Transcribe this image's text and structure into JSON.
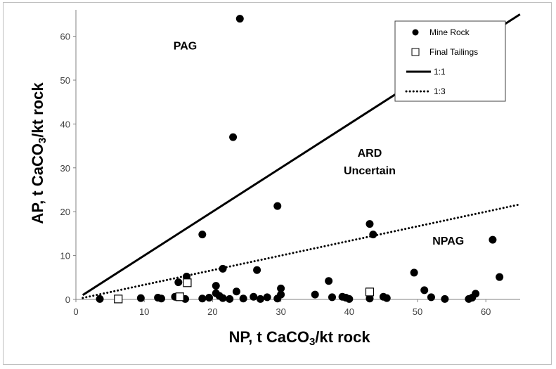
{
  "chart_data": {
    "type": "scatter",
    "xlabel": "NP, t CaCO3/kt rock",
    "ylabel": "AP, t CaCO3/kt rock",
    "xlim": [
      0,
      65
    ],
    "ylim": [
      0,
      65
    ],
    "x_ticks": [
      "0",
      "10",
      "20",
      "30",
      "40",
      "50",
      "60"
    ],
    "y_ticks": [
      "0",
      "10",
      "20",
      "30",
      "40",
      "50",
      "60"
    ],
    "grid": false,
    "legend_position": "top-right",
    "regions": [
      {
        "label": "PAG",
        "x": 16,
        "y": 57
      },
      {
        "label": "ARD",
        "x": 43,
        "y": 32.5
      },
      {
        "label": "Uncertain",
        "x": 43,
        "y": 28.5
      },
      {
        "label": "NPAG",
        "x": 54.5,
        "y": 12.5
      }
    ],
    "series": [
      {
        "name": "Mine Rock",
        "marker": "circle",
        "color": "#000000",
        "points": [
          [
            24,
            64
          ],
          [
            23,
            37
          ],
          [
            29.5,
            21.3
          ],
          [
            18.5,
            14.8
          ],
          [
            43,
            17.2
          ],
          [
            43.5,
            14.8
          ],
          [
            61,
            13.6
          ],
          [
            26.5,
            6.7
          ],
          [
            21.5,
            7
          ],
          [
            49.5,
            6.1
          ],
          [
            37,
            4.2
          ],
          [
            15,
            3.9
          ],
          [
            16.2,
            5.2
          ],
          [
            20.5,
            3.1
          ],
          [
            30,
            2.5
          ],
          [
            51,
            2.1
          ],
          [
            62,
            5.1
          ],
          [
            58.5,
            1.3
          ],
          [
            3.5,
            0.1
          ],
          [
            9.5,
            0.3
          ],
          [
            12,
            0.4
          ],
          [
            12.5,
            0.2
          ],
          [
            14.5,
            0.6
          ],
          [
            16,
            0.1
          ],
          [
            18.5,
            0.2
          ],
          [
            19.5,
            0.4
          ],
          [
            20.5,
            1.4
          ],
          [
            21,
            0.8
          ],
          [
            21.5,
            0.3
          ],
          [
            22.5,
            0.1
          ],
          [
            23.5,
            1.8
          ],
          [
            24.5,
            0.2
          ],
          [
            26,
            0.6
          ],
          [
            27,
            0.1
          ],
          [
            28,
            0.5
          ],
          [
            29.5,
            0.2
          ],
          [
            30,
            1.1
          ],
          [
            35,
            1.1
          ],
          [
            37.5,
            0.5
          ],
          [
            39,
            0.6
          ],
          [
            39.5,
            0.4
          ],
          [
            40,
            0.1
          ],
          [
            43,
            0.2
          ],
          [
            45,
            0.6
          ],
          [
            45.5,
            0.3
          ],
          [
            52,
            0.5
          ],
          [
            54,
            0.1
          ],
          [
            57.5,
            0.1
          ],
          [
            58,
            0.4
          ]
        ]
      },
      {
        "name": "Final Tailings",
        "marker": "square",
        "color": "#000000",
        "points": [
          [
            6.2,
            0.1
          ],
          [
            15.2,
            0.6
          ],
          [
            16.3,
            3.8
          ],
          [
            43,
            1.7
          ]
        ]
      },
      {
        "name": "1:1",
        "line": "solid",
        "points": [
          [
            1,
            1
          ],
          [
            65,
            65
          ]
        ]
      },
      {
        "name": "1:3",
        "line": "dotted",
        "points": [
          [
            1,
            0.333
          ],
          [
            65,
            21.667
          ]
        ]
      }
    ]
  }
}
